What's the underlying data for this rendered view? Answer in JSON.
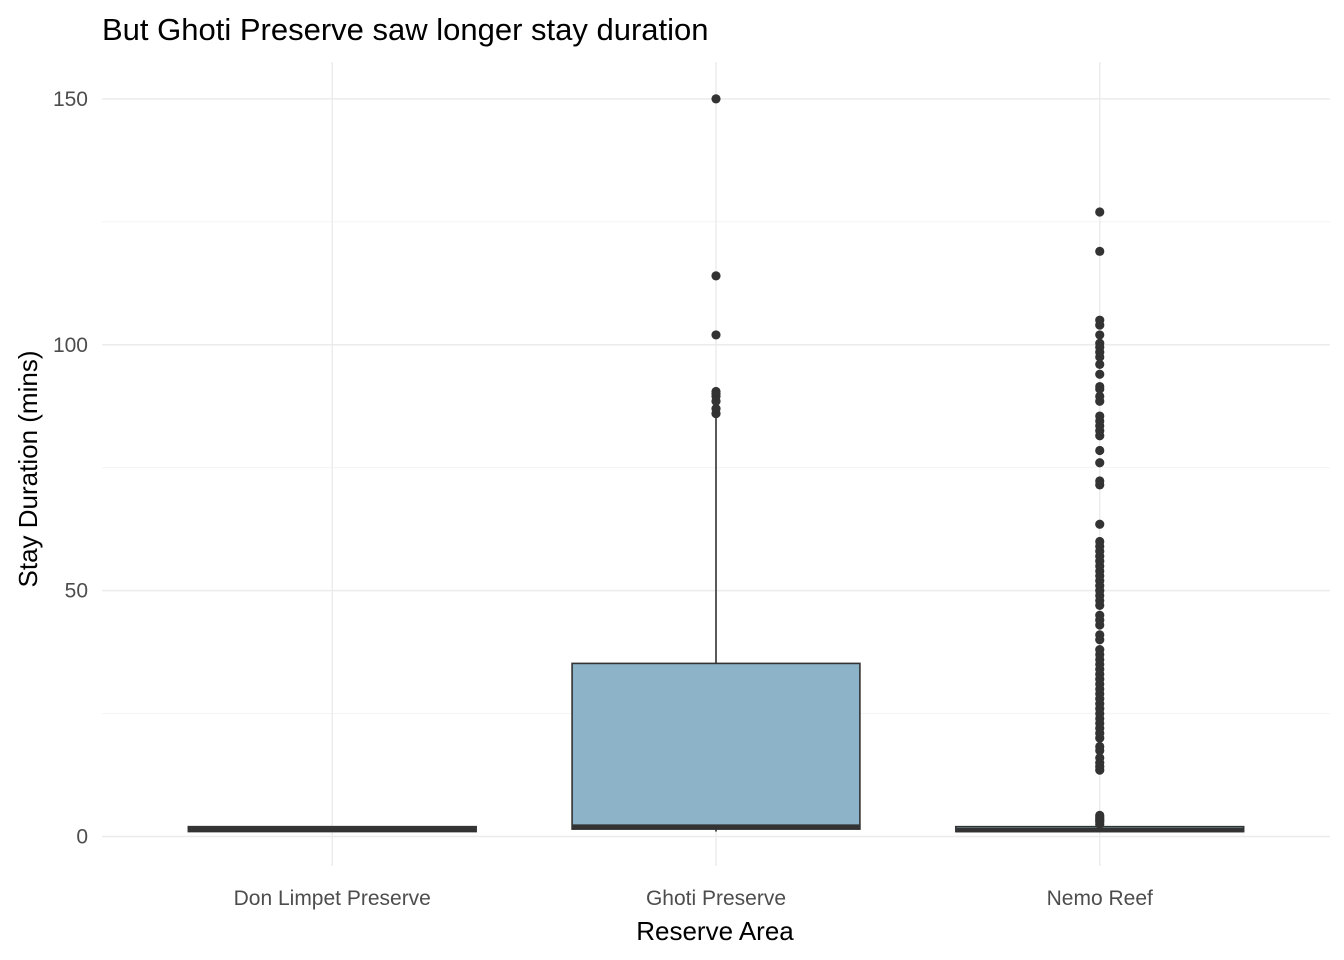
{
  "chart_data": {
    "type": "box",
    "title": "But Ghoti Preserve saw longer stay duration",
    "xlabel": "Reserve Area",
    "ylabel": "Stay Duration (mins)",
    "ylim": [
      -6,
      157.5
    ],
    "y_ticks": [
      0,
      50,
      100,
      150
    ],
    "y_minor_ticks": [
      25,
      75,
      125
    ],
    "grid": true,
    "fill_color": "#8db3c9",
    "line_color": "#333333",
    "categories": [
      "Don Limpet Preserve",
      "Ghoti Preserve",
      "Nemo Reef"
    ],
    "boxes": [
      {
        "name": "Don Limpet Preserve",
        "q1": 1,
        "median": 1.4,
        "q3": 2,
        "whisker_low": 1,
        "whisker_high": 2,
        "outliers": []
      },
      {
        "name": "Ghoti Preserve",
        "q1": 1.5,
        "median": 2,
        "q3": 35.2,
        "whisker_low": 1,
        "whisker_high": 85.5,
        "outliers": [
          86,
          87,
          88.5,
          89.5,
          90,
          90.5,
          102,
          114,
          150
        ]
      },
      {
        "name": "Nemo Reef",
        "q1": 1,
        "median": 1.3,
        "q3": 2,
        "whisker_low": 1,
        "whisker_high": 2,
        "outliers": [
          2.5,
          3,
          3.3,
          3.6,
          4,
          4.3,
          13.5,
          14.2,
          15,
          16,
          17.5,
          18.3,
          20,
          21,
          22,
          23,
          24,
          25,
          26,
          27,
          28,
          29,
          30,
          31,
          32,
          33,
          34,
          35,
          36,
          37,
          38,
          40,
          41,
          43,
          44,
          45,
          47,
          48,
          49,
          50,
          51,
          52,
          53,
          54,
          55,
          56,
          57,
          58,
          59,
          60,
          63.5,
          71.5,
          72.3,
          76,
          78.5,
          81.5,
          82.5,
          83.5,
          84.5,
          85.5,
          88.5,
          89.5,
          91,
          91.5,
          94,
          96,
          97.5,
          98.5,
          99.5,
          100.3,
          102,
          104,
          105,
          119,
          127
        ]
      }
    ]
  }
}
